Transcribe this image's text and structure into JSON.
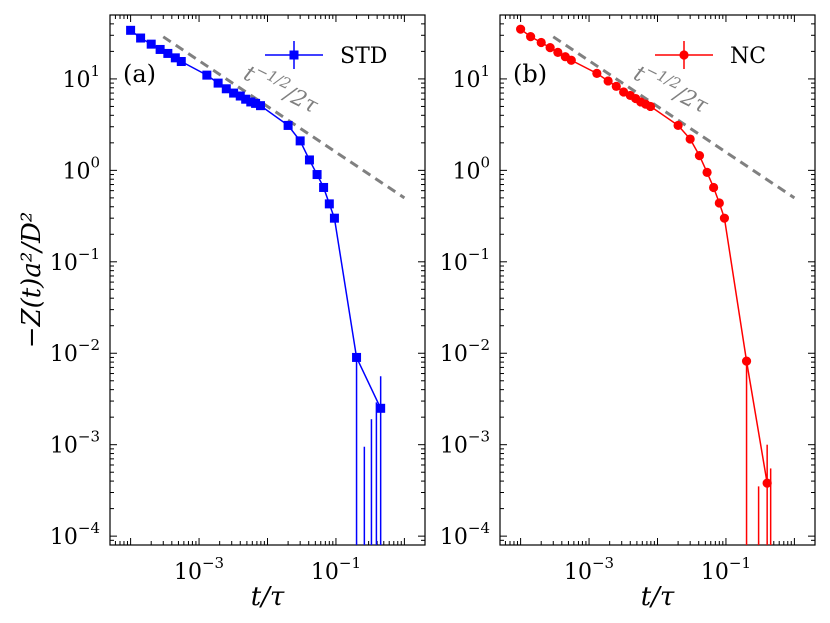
{
  "y_axis_title": "−Z(t)a²/D²",
  "x_axis_title": "t/τ",
  "x_tick_labels": [
    {
      "value": 0.001,
      "base": "10",
      "exp": "−3"
    },
    {
      "value": 0.1,
      "base": "10",
      "exp": "−1"
    }
  ],
  "y_tick_labels": [
    {
      "value": 10,
      "base": "10",
      "exp": "1"
    },
    {
      "value": 1,
      "base": "10",
      "exp": "0"
    },
    {
      "value": 0.1,
      "base": "10",
      "exp": "−1"
    },
    {
      "value": 0.01,
      "base": "10",
      "exp": "−2"
    },
    {
      "value": 0.001,
      "base": "10",
      "exp": "−3"
    },
    {
      "value": 0.0001,
      "base": "10",
      "exp": "−4"
    }
  ],
  "chart_data": [
    {
      "type": "line",
      "panel_label": "(a)",
      "xscale": "log",
      "yscale": "log",
      "xlim": [
        5e-05,
        2.0
      ],
      "ylim": [
        8e-05,
        50
      ],
      "reference_line": {
        "label": "t^{−1/2}/2τ",
        "label_base": "t",
        "label_exp": "−1/2",
        "label_tail": "/2τ",
        "x_from": 0.0003,
        "x_to": 1.0,
        "coefficient": 0.5,
        "power": -0.5,
        "color": "#808080"
      },
      "series": [
        {
          "name": "STD",
          "color": "#0000ff",
          "marker": "square",
          "x": [
            0.0001,
            0.00014,
            0.0002,
            0.00027,
            0.00035,
            0.00045,
            0.00055,
            0.0013,
            0.0019,
            0.0025,
            0.0032,
            0.004,
            0.0048,
            0.0057,
            0.0067,
            0.0079,
            0.02,
            0.03,
            0.041,
            0.053,
            0.066,
            0.08,
            0.095,
            0.2,
            0.45
          ],
          "y": [
            34,
            28,
            24,
            21,
            19,
            17,
            15.5,
            11,
            9,
            7.8,
            7,
            6.5,
            6,
            5.6,
            5.4,
            5.1,
            3.1,
            2.1,
            1.3,
            0.9,
            0.65,
            0.43,
            0.3,
            0.009,
            0.0025
          ],
          "error_bars": [
            {
              "x": 0.2,
              "y": 0.009,
              "low": 8e-05,
              "high": 0.009
            },
            {
              "x": 0.26,
              "low": 8e-05,
              "high": 0.00095
            },
            {
              "x": 0.33,
              "low": 8e-05,
              "high": 0.0019
            },
            {
              "x": 0.39,
              "low": 8e-05,
              "high": 0.0029
            },
            {
              "x": 0.45,
              "y": 0.0025,
              "low": 8e-05,
              "high": 0.0056
            }
          ]
        }
      ]
    },
    {
      "type": "line",
      "panel_label": "(b)",
      "xscale": "log",
      "yscale": "log",
      "xlim": [
        5e-05,
        2.0
      ],
      "ylim": [
        8e-05,
        50
      ],
      "reference_line": {
        "label": "t^{−1/2}/2τ",
        "label_base": "t",
        "label_exp": "−1/2",
        "label_tail": "/2τ",
        "x_from": 0.0003,
        "x_to": 1.0,
        "coefficient": 0.5,
        "power": -0.5,
        "color": "#808080"
      },
      "series": [
        {
          "name": "NC",
          "color": "#ff0000",
          "marker": "circle",
          "x": [
            0.0001,
            0.00014,
            0.0002,
            0.00027,
            0.00035,
            0.00045,
            0.00055,
            0.0013,
            0.0019,
            0.0025,
            0.0032,
            0.004,
            0.0048,
            0.0057,
            0.0067,
            0.0079,
            0.02,
            0.03,
            0.041,
            0.053,
            0.066,
            0.08,
            0.095,
            0.2,
            0.4
          ],
          "y": [
            35,
            29,
            25,
            22,
            19.5,
            17.5,
            16,
            11.5,
            9.5,
            8.3,
            7.2,
            6.6,
            6.1,
            5.6,
            5.3,
            5.0,
            3.1,
            2.2,
            1.45,
            0.95,
            0.65,
            0.44,
            0.3,
            0.0082,
            0.00038
          ],
          "error_bars": [
            {
              "x": 0.2,
              "y": 0.0082,
              "low": 8e-05,
              "high": 0.0082
            },
            {
              "x": 0.3,
              "low": 8e-05,
              "high": 0.00035
            },
            {
              "x": 0.4,
              "y": 0.00038,
              "low": 8e-05,
              "high": 0.001
            },
            {
              "x": 0.45,
              "low": 8e-05,
              "high": 0.00055
            }
          ]
        }
      ]
    }
  ]
}
